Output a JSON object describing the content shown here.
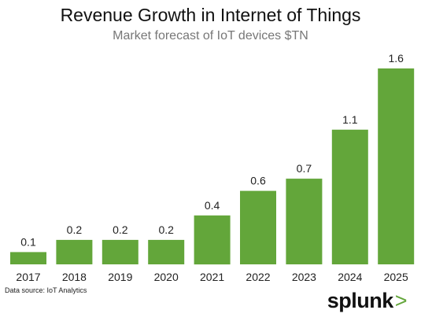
{
  "chart_data": {
    "type": "bar",
    "title": "Revenue Growth in Internet of Things",
    "subtitle": "Market forecast of IoT devices $TN",
    "categories": [
      "2017",
      "2018",
      "2019",
      "2020",
      "2021",
      "2022",
      "2023",
      "2024",
      "2025"
    ],
    "values": [
      0.1,
      0.2,
      0.2,
      0.2,
      0.4,
      0.6,
      0.7,
      1.1,
      1.6
    ],
    "value_labels": [
      "0.1",
      "0.2",
      "0.2",
      "0.2",
      "0.4",
      "0.6",
      "0.7",
      "1.1",
      "1.6"
    ],
    "ylim": [
      0,
      1.6
    ],
    "grid": false,
    "bar_color": "#63a63a"
  },
  "source": "Data source: IoT Analytics",
  "logo": {
    "text": "splunk",
    "chevron": ">"
  }
}
